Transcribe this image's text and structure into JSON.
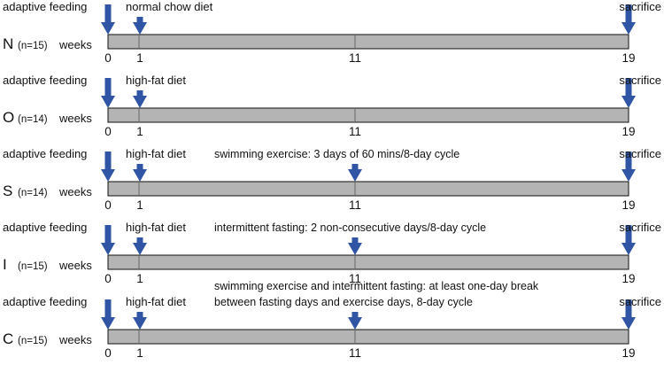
{
  "colors": {
    "arrow": "#2f55a4",
    "bar_fill": "#b4b4b4",
    "bar_stroke": "#111111"
  },
  "groups": [
    {
      "code": "N",
      "n": "(n=15)",
      "weeks_label": "weeks",
      "adaptive_label": "adaptive feeding",
      "diet_label": "normal chow diet",
      "sacrifice_label": "sacrifice",
      "notes": [],
      "ticks": [
        "0",
        "1",
        "11",
        "19"
      ]
    },
    {
      "code": "O",
      "n": "(n=14)",
      "weeks_label": "weeks",
      "adaptive_label": "adaptive feeding",
      "diet_label": "high-fat diet",
      "sacrifice_label": "sacrifice",
      "notes": [],
      "ticks": [
        "0",
        "1",
        "11",
        "19"
      ]
    },
    {
      "code": "S",
      "n": "(n=14)",
      "weeks_label": "weeks",
      "adaptive_label": "adaptive feeding",
      "diet_label": "high-fat diet",
      "sacrifice_label": "sacrifice",
      "notes": [
        "swimming exercise: 3 days of 60 mins/8-day cycle"
      ],
      "ticks": [
        "0",
        "1",
        "11",
        "19"
      ]
    },
    {
      "code": "I",
      "n": "(n=15)",
      "weeks_label": "weeks",
      "adaptive_label": "adaptive feeding",
      "diet_label": "high-fat diet",
      "sacrifice_label": "sacrifice",
      "notes": [
        "intermittent fasting: 2 non-consecutive days/8-day cycle"
      ],
      "ticks": [
        "0",
        "1",
        "11",
        "19"
      ]
    },
    {
      "code": "C",
      "n": "(n=15)",
      "weeks_label": "weeks",
      "adaptive_label": "adaptive feeding",
      "diet_label": "high-fat diet",
      "sacrifice_label": "sacrifice",
      "notes": [
        "swimming exercise and intermittent fasting: at least one-day break",
        "between fasting days and exercise days,  8-day cycle"
      ],
      "ticks": [
        "0",
        "1",
        "11",
        "19"
      ]
    }
  ]
}
